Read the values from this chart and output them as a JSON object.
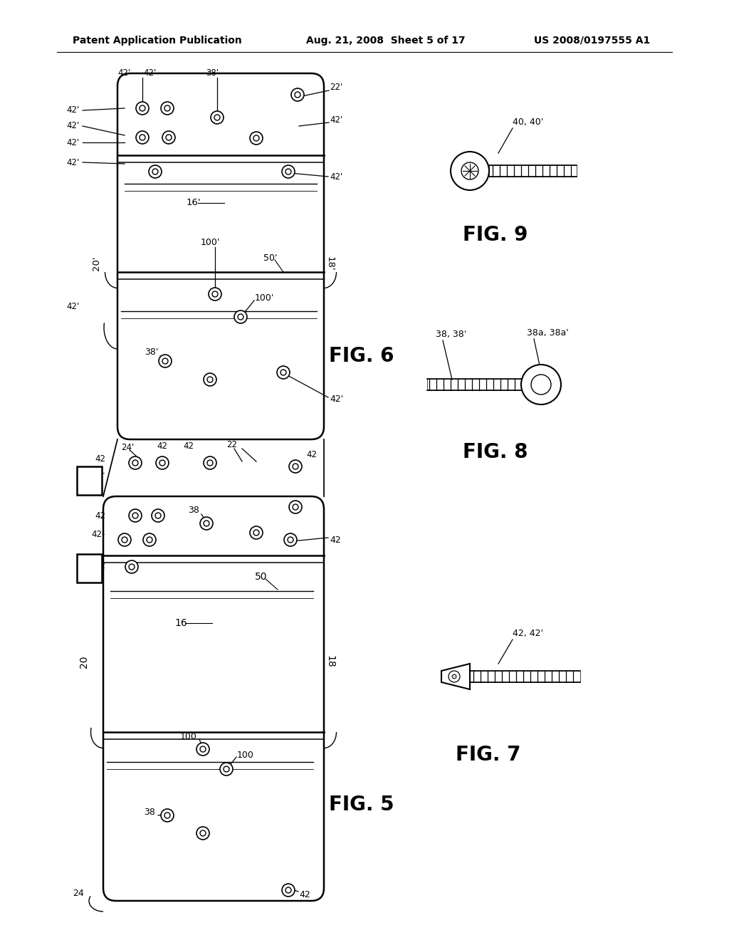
{
  "title_left": "Patent Application Publication",
  "title_mid": "Aug. 21, 2008  Sheet 5 of 17",
  "title_right": "US 2008/0197555 A1",
  "bg_color": "#ffffff",
  "line_color": "#000000"
}
